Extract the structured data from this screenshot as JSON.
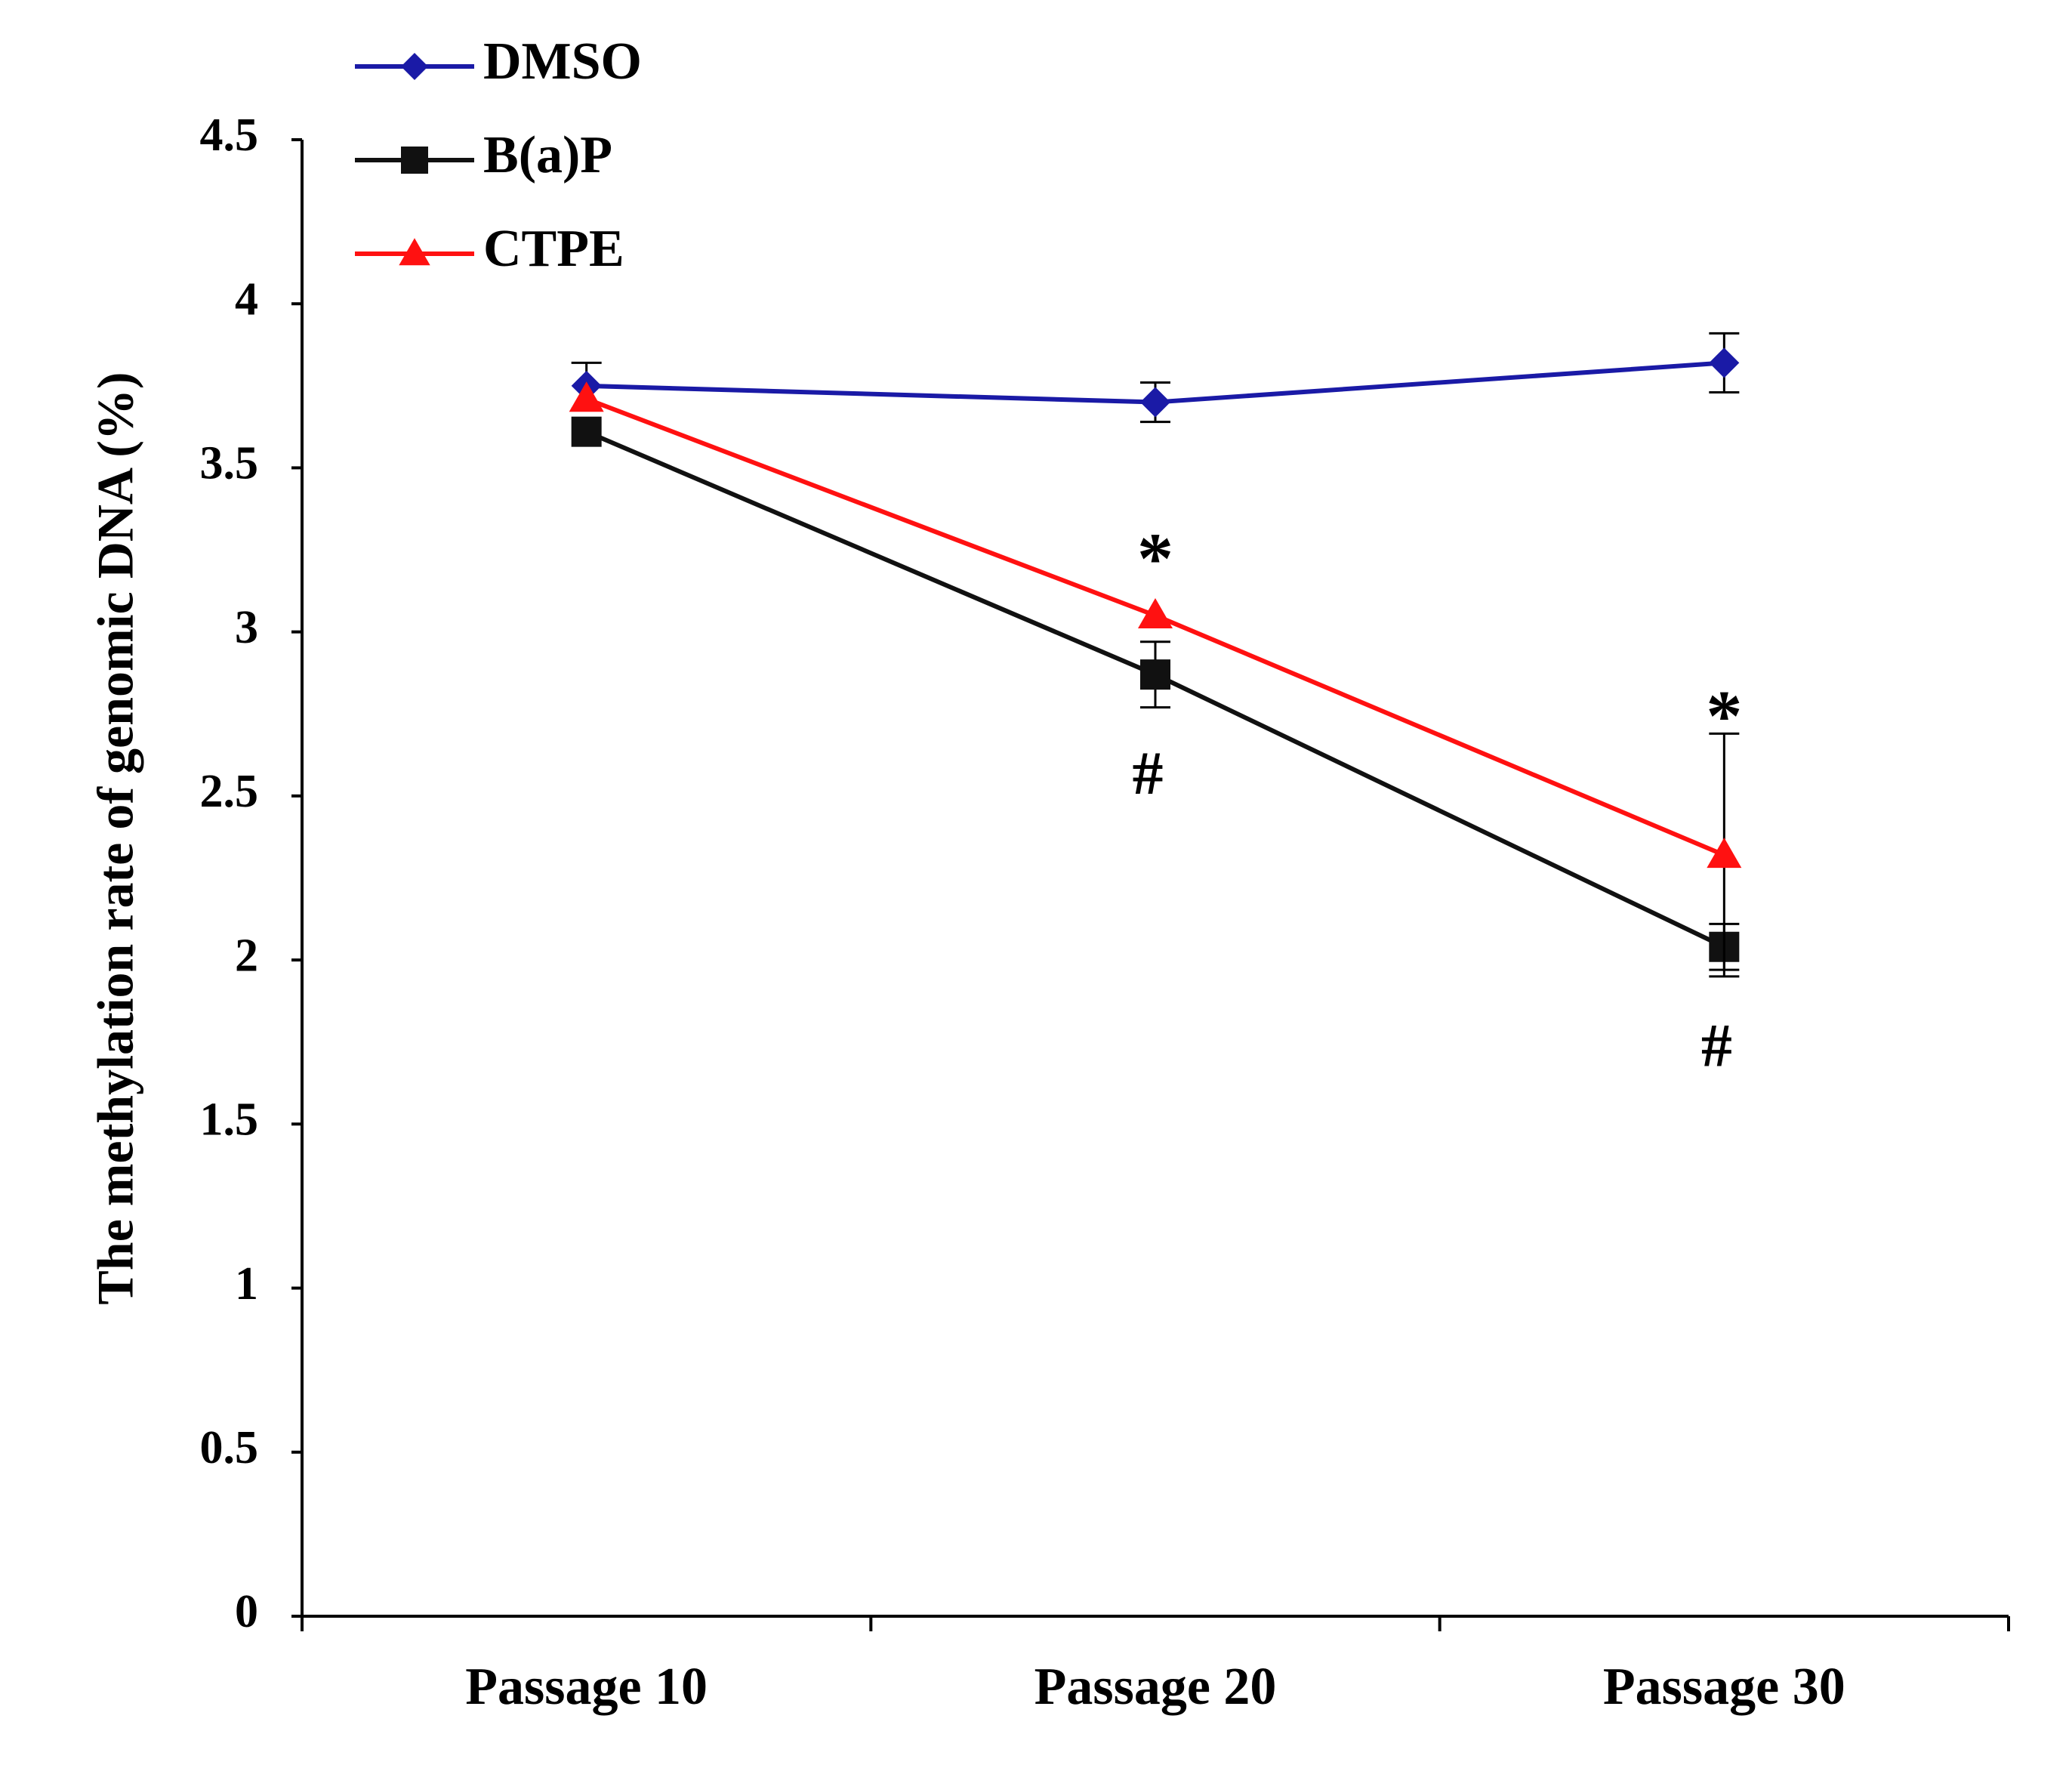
{
  "chart_data": {
    "type": "line",
    "title": "",
    "xlabel": "",
    "ylabel": "The methylation rate of genomic DNA (%)",
    "categories": [
      "Passage 10",
      "Passage 20",
      "Passage 30"
    ],
    "ylim": [
      0,
      4.5
    ],
    "yticks": [
      0,
      0.5,
      1,
      1.5,
      2,
      2.5,
      3,
      3.5,
      4,
      4.5
    ],
    "ytick_labels": [
      "0",
      "0.5",
      "1",
      "1.5",
      "2",
      "2.5",
      "3",
      "3.5",
      "4",
      "4.5"
    ],
    "grid": false,
    "legend_position": "top-left",
    "series": [
      {
        "name": "DMSO",
        "color": "#1a1aa6",
        "marker": "diamond",
        "values": [
          3.75,
          3.7,
          3.82
        ],
        "errors": [
          0.07,
          0.06,
          0.09
        ]
      },
      {
        "name": "B(a)P",
        "color": "#111111",
        "marker": "square",
        "values": [
          3.61,
          2.87,
          2.04
        ],
        "errors": [
          0.0,
          0.1,
          0.07
        ]
      },
      {
        "name": "CTPE",
        "color": "#ff1111",
        "marker": "triangle",
        "values": [
          3.71,
          3.05,
          2.32
        ],
        "errors": [
          0.0,
          0.0,
          0.37
        ]
      }
    ],
    "annotations": [
      {
        "text": "*",
        "category_index": 1,
        "value": 3.2,
        "series": "CTPE"
      },
      {
        "text": "#",
        "category_index": 1,
        "value": 2.55,
        "series": "B(a)P"
      },
      {
        "text": "*",
        "category_index": 2,
        "value": 2.72,
        "series": "CTPE"
      },
      {
        "text": "#",
        "category_index": 2,
        "value": 1.72,
        "series": "B(a)P"
      }
    ]
  }
}
